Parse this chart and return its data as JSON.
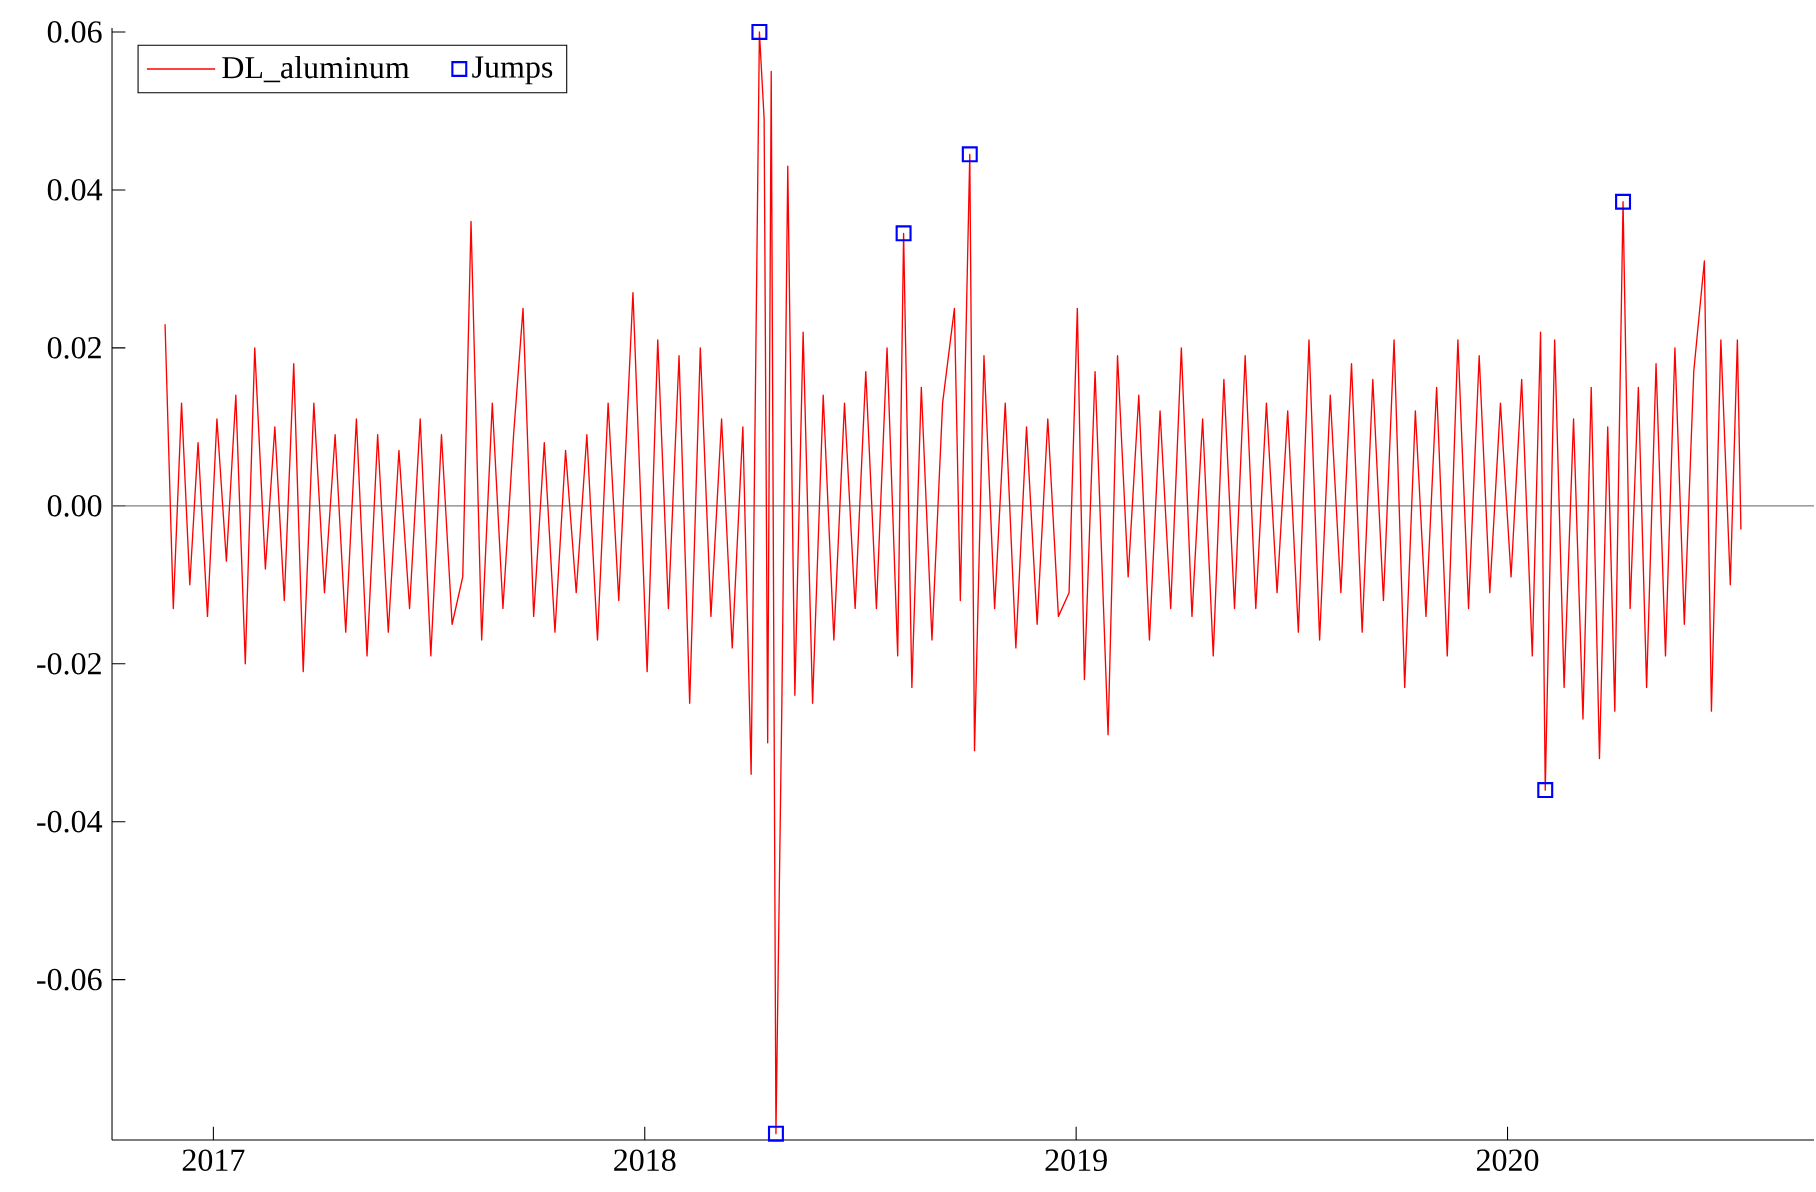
{
  "chart_data": {
    "type": "line",
    "xlim": [
      "2016-10-07",
      "2020-09-17"
    ],
    "ylim": [
      -0.0803,
      0.0605
    ],
    "xticks": [
      {
        "value": "2017-01-01",
        "label": "2017"
      },
      {
        "value": "2018-01-01",
        "label": "2018"
      },
      {
        "value": "2019-01-01",
        "label": "2019"
      },
      {
        "value": "2020-01-01",
        "label": "2020"
      }
    ],
    "yticks": [
      {
        "value": 0.06,
        "label": "0.06"
      },
      {
        "value": 0.04,
        "label": "0.04"
      },
      {
        "value": 0.02,
        "label": "0.02"
      },
      {
        "value": 0,
        "label": "0.00"
      },
      {
        "value": -0.02,
        "label": "-0.02"
      },
      {
        "value": -0.04,
        "label": "-0.04"
      },
      {
        "value": -0.06,
        "label": "-0.06"
      }
    ],
    "grid": false,
    "legend": "top left",
    "ref_lines": [
      {
        "axis": "y",
        "value": 0,
        "color": "#808080"
      }
    ],
    "series": [
      {
        "name": "DL_aluminum",
        "color": "#ff0000",
        "marker": "none",
        "x": [
          "2016-11-21",
          "2016-11-28",
          "2016-12-05",
          "2016-12-12",
          "2016-12-19",
          "2016-12-27",
          "2017-01-04",
          "2017-01-12",
          "2017-01-20",
          "2017-01-28",
          "2017-02-05",
          "2017-02-14",
          "2017-02-22",
          "2017-03-02",
          "2017-03-10",
          "2017-03-18",
          "2017-03-27",
          "2017-04-05",
          "2017-04-14",
          "2017-04-23",
          "2017-05-02",
          "2017-05-11",
          "2017-05-20",
          "2017-05-29",
          "2017-06-07",
          "2017-06-16",
          "2017-06-25",
          "2017-07-04",
          "2017-07-13",
          "2017-07-22",
          "2017-07-31",
          "2017-08-07",
          "2017-08-16",
          "2017-08-25",
          "2017-09-03",
          "2017-09-12",
          "2017-09-20",
          "2017-09-29",
          "2017-10-08",
          "2017-10-17",
          "2017-10-26",
          "2017-11-04",
          "2017-11-13",
          "2017-11-22",
          "2017-12-01",
          "2017-12-10",
          "2017-12-22",
          "2018-01-03",
          "2018-01-12",
          "2018-01-21",
          "2018-01-30",
          "2018-02-08",
          "2018-02-17",
          "2018-02-26",
          "2018-03-07",
          "2018-03-16",
          "2018-03-25",
          "2018-04-01",
          "2018-04-08",
          "2018-04-12",
          "2018-04-15",
          "2018-04-18",
          "2018-04-22",
          "2018-04-27",
          "2018-05-02",
          "2018-05-08",
          "2018-05-15",
          "2018-05-23",
          "2018-06-01",
          "2018-06-10",
          "2018-06-19",
          "2018-06-28",
          "2018-07-07",
          "2018-07-16",
          "2018-07-25",
          "2018-08-03",
          "2018-08-08",
          "2018-08-15",
          "2018-08-23",
          "2018-09-01",
          "2018-09-10",
          "2018-09-20",
          "2018-09-25",
          "2018-10-03",
          "2018-10-07",
          "2018-10-15",
          "2018-10-24",
          "2018-11-02",
          "2018-11-11",
          "2018-11-20",
          "2018-11-29",
          "2018-12-08",
          "2018-12-17",
          "2018-12-26",
          "2019-01-02",
          "2019-01-08",
          "2019-01-17",
          "2019-01-28",
          "2019-02-05",
          "2019-02-14",
          "2019-02-23",
          "2019-03-04",
          "2019-03-13",
          "2019-03-22",
          "2019-03-31",
          "2019-04-09",
          "2019-04-18",
          "2019-04-27",
          "2019-05-06",
          "2019-05-15",
          "2019-05-24",
          "2019-06-02",
          "2019-06-11",
          "2019-06-20",
          "2019-06-29",
          "2019-07-08",
          "2019-07-17",
          "2019-07-26",
          "2019-08-04",
          "2019-08-13",
          "2019-08-22",
          "2019-08-31",
          "2019-09-09",
          "2019-09-18",
          "2019-09-27",
          "2019-10-06",
          "2019-10-15",
          "2019-10-24",
          "2019-11-02",
          "2019-11-11",
          "2019-11-20",
          "2019-11-29",
          "2019-12-08",
          "2019-12-17",
          "2019-12-26",
          "2020-01-04",
          "2020-01-13",
          "2020-01-22",
          "2020-01-29",
          "2020-02-02",
          "2020-02-10",
          "2020-02-18",
          "2020-02-26",
          "2020-03-05",
          "2020-03-12",
          "2020-03-19",
          "2020-03-26",
          "2020-04-01",
          "2020-04-08",
          "2020-04-14",
          "2020-04-21",
          "2020-04-28",
          "2020-05-06",
          "2020-05-14",
          "2020-05-22",
          "2020-05-30",
          "2020-06-07",
          "2020-06-16",
          "2020-06-22",
          "2020-06-30",
          "2020-07-08",
          "2020-07-14",
          "2020-07-17"
        ],
        "values": [
          0.023,
          -0.013,
          0.013,
          -0.01,
          0.008,
          -0.014,
          0.011,
          -0.007,
          0.014,
          -0.02,
          0.02,
          -0.008,
          0.01,
          -0.012,
          0.018,
          -0.021,
          0.013,
          -0.011,
          0.009,
          -0.016,
          0.011,
          -0.019,
          0.009,
          -0.016,
          0.007,
          -0.013,
          0.011,
          -0.019,
          0.009,
          -0.015,
          -0.009,
          0.036,
          -0.017,
          0.013,
          -0.013,
          0.009,
          0.025,
          -0.014,
          0.008,
          -0.016,
          0.007,
          -0.011,
          0.009,
          -0.017,
          0.013,
          -0.012,
          0.027,
          -0.021,
          0.021,
          -0.013,
          0.019,
          -0.025,
          0.02,
          -0.014,
          0.011,
          -0.018,
          0.01,
          -0.034,
          0.06,
          0.049,
          -0.03,
          0.055,
          -0.0795,
          -0.025,
          0.043,
          -0.024,
          0.022,
          -0.025,
          0.014,
          -0.017,
          0.013,
          -0.013,
          0.017,
          -0.013,
          0.02,
          -0.019,
          0.0345,
          -0.023,
          0.015,
          -0.017,
          0.013,
          0.025,
          -0.012,
          0.0445,
          -0.031,
          0.019,
          -0.013,
          0.013,
          -0.018,
          0.01,
          -0.015,
          0.011,
          -0.014,
          -0.011,
          0.025,
          -0.022,
          0.017,
          -0.029,
          0.019,
          -0.009,
          0.014,
          -0.017,
          0.012,
          -0.013,
          0.02,
          -0.014,
          0.011,
          -0.019,
          0.016,
          -0.013,
          0.019,
          -0.013,
          0.013,
          -0.011,
          0.012,
          -0.016,
          0.021,
          -0.017,
          0.014,
          -0.011,
          0.018,
          -0.016,
          0.016,
          -0.012,
          0.021,
          -0.023,
          0.012,
          -0.014,
          0.015,
          -0.019,
          0.021,
          -0.013,
          0.019,
          -0.011,
          0.013,
          -0.009,
          0.016,
          -0.019,
          0.022,
          -0.036,
          0.021,
          -0.023,
          0.011,
          -0.027,
          0.015,
          -0.032,
          0.01,
          -0.026,
          0.0385,
          -0.013,
          0.015,
          -0.023,
          0.018,
          -0.019,
          0.02,
          -0.015,
          0.017,
          0.031,
          -0.026,
          0.021,
          -0.01,
          0.021,
          -0.003
        ]
      },
      {
        "name": "Jumps",
        "type": "scatter",
        "color": "#0000ff",
        "marker": "square",
        "x": [
          "2018-04-08",
          "2018-04-22",
          "2018-08-08",
          "2018-10-03",
          "2020-02-02",
          "2020-04-08"
        ],
        "values": [
          0.06,
          -0.0795,
          0.0345,
          0.0445,
          -0.036,
          0.0385
        ]
      }
    ]
  }
}
